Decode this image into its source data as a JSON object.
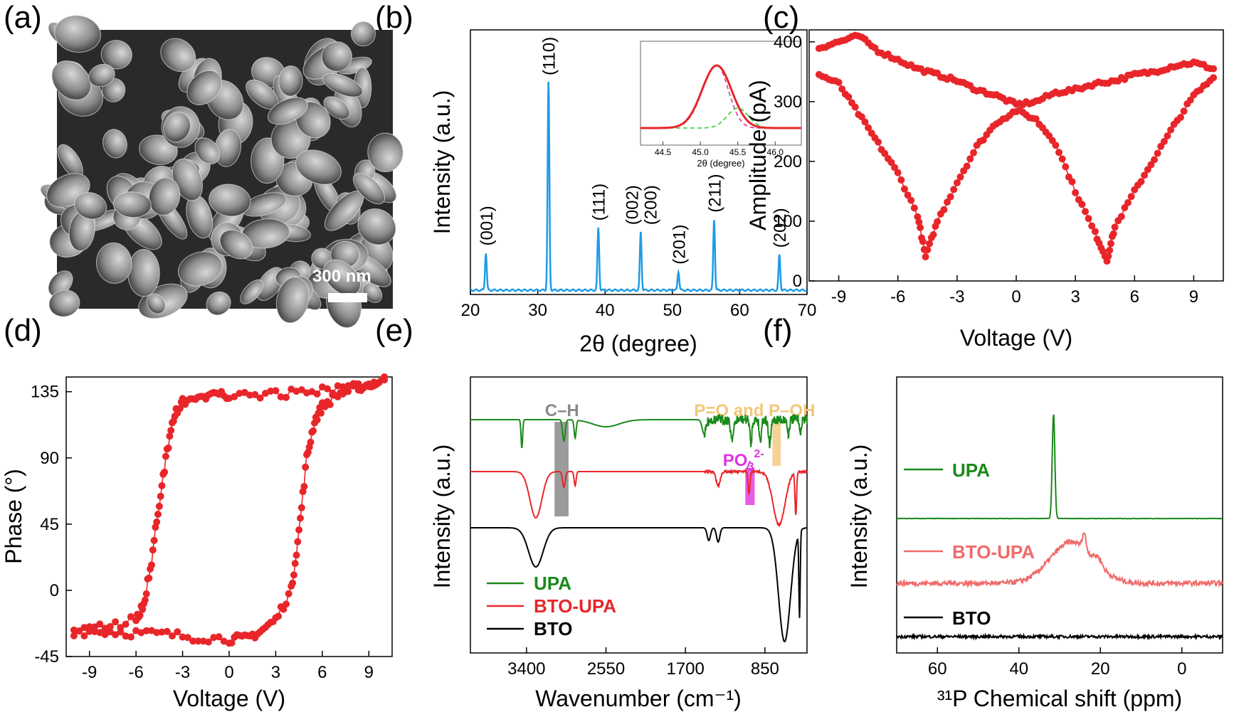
{
  "panels": {
    "a": {
      "label": "(a)",
      "scale_bar_text": "300 nm"
    },
    "b": {
      "label": "(b)",
      "inset_xlabel": "2θ (degree)",
      "inset_xticks": [
        "44.5",
        "45.0",
        "45.5",
        "46.0"
      ]
    },
    "c": {
      "label": "(c)"
    },
    "d": {
      "label": "(d)"
    },
    "e": {
      "label": "(e)",
      "annotations": {
        "ch": "C–H",
        "po": "P=O and P–OH",
        "po3": "PO",
        "po3_sub": "3",
        "po3_sup": "2-"
      }
    },
    "f": {
      "label": "(f)"
    }
  },
  "colors": {
    "xrd": "#1e9be6",
    "red": "#e8262a",
    "upa": "#1a8a1a",
    "bto_upa_nmr": "#f06a6a",
    "bto": "#000000",
    "ch_box": "#8a8a8a",
    "po_box": "#f2c77a",
    "po3_box": "#e033e0",
    "inset_fit": "#e8262a",
    "inset_magenta": "#e0339a",
    "inset_green": "#33cc33"
  },
  "chart_data": [
    {
      "id": "b",
      "type": "line",
      "xlabel": "2θ (degree)",
      "ylabel": "Intensity (a.u.)",
      "xlim": [
        20,
        70
      ],
      "xticks": [
        20,
        30,
        40,
        50,
        60,
        70
      ],
      "peaks": [
        {
          "x": 22.3,
          "h": 0.18,
          "label": "(001)"
        },
        {
          "x": 31.6,
          "h": 1.0,
          "label": "(110)"
        },
        {
          "x": 39.0,
          "h": 0.3,
          "label": "(111)"
        },
        {
          "x": 45.3,
          "h": 0.28,
          "label": "(002)\n(200)"
        },
        {
          "x": 50.9,
          "h": 0.09,
          "label": "(201)"
        },
        {
          "x": 56.2,
          "h": 0.34,
          "label": "(211)"
        },
        {
          "x": 65.9,
          "h": 0.17,
          "label": "(202)"
        }
      ]
    },
    {
      "id": "c",
      "type": "scatter",
      "xlabel": "Voltage (V)",
      "ylabel": "Amplitude (pA)",
      "xlim": [
        -10.5,
        10.5
      ],
      "ylim": [
        0,
        420
      ],
      "xticks": [
        -9,
        -6,
        -3,
        0,
        3,
        6,
        9
      ],
      "yticks": [
        0,
        100,
        200,
        300,
        400
      ],
      "branch_top": [
        [
          -10,
          390
        ],
        [
          -9,
          400
        ],
        [
          -8,
          410
        ],
        [
          -7,
          385
        ],
        [
          -6,
          370
        ],
        [
          -5,
          355
        ],
        [
          -4,
          345
        ],
        [
          -3,
          335
        ],
        [
          -2,
          320
        ],
        [
          -1,
          310
        ],
        [
          0,
          295
        ],
        [
          1,
          300
        ],
        [
          2,
          315
        ],
        [
          3,
          320
        ],
        [
          4,
          330
        ],
        [
          5,
          335
        ],
        [
          6,
          345
        ],
        [
          7,
          350
        ],
        [
          8,
          360
        ],
        [
          9,
          365
        ],
        [
          10,
          355
        ]
      ],
      "branch_bottom": [
        [
          -10,
          345
        ],
        [
          -9,
          330
        ],
        [
          -8,
          280
        ],
        [
          -7,
          230
        ],
        [
          -6,
          180
        ],
        [
          -5,
          110
        ],
        [
          -4.6,
          40
        ],
        [
          -4,
          100
        ],
        [
          -3,
          165
        ],
        [
          -2,
          225
        ],
        [
          -1,
          265
        ],
        [
          0,
          285
        ],
        [
          1,
          270
        ],
        [
          2,
          230
        ],
        [
          3,
          150
        ],
        [
          4,
          80
        ],
        [
          4.6,
          35
        ],
        [
          5,
          90
        ],
        [
          6,
          150
        ],
        [
          7,
          205
        ],
        [
          8,
          260
        ],
        [
          9,
          310
        ],
        [
          10,
          340
        ]
      ]
    },
    {
      "id": "d",
      "type": "scatter",
      "xlabel": "Voltage (V)",
      "ylabel": "Phase (°)",
      "xlim": [
        -10.5,
        10.5
      ],
      "ylim": [
        -45,
        145
      ],
      "xticks": [
        -9,
        -6,
        -3,
        0,
        3,
        6,
        9
      ],
      "yticks": [
        -45,
        0,
        45,
        90,
        135
      ],
      "branch_forward": [
        [
          -10,
          -28
        ],
        [
          -8,
          -28
        ],
        [
          -6,
          -29
        ],
        [
          -4,
          -30
        ],
        [
          -2,
          -32
        ],
        [
          0,
          -33
        ],
        [
          1,
          -33
        ],
        [
          2,
          -28
        ],
        [
          3,
          -20
        ],
        [
          4,
          0
        ],
        [
          4.5,
          40
        ],
        [
          5,
          90
        ],
        [
          5.5,
          115
        ],
        [
          6,
          125
        ],
        [
          7,
          133
        ],
        [
          8,
          137
        ],
        [
          9,
          140
        ],
        [
          10,
          143
        ]
      ],
      "branch_backward": [
        [
          10,
          143
        ],
        [
          8,
          138
        ],
        [
          6,
          136
        ],
        [
          4,
          134
        ],
        [
          2,
          133
        ],
        [
          0,
          133
        ],
        [
          -1,
          132
        ],
        [
          -2,
          130
        ],
        [
          -3,
          128
        ],
        [
          -3.5,
          120
        ],
        [
          -4,
          95
        ],
        [
          -4.5,
          60
        ],
        [
          -5,
          20
        ],
        [
          -5.5,
          -10
        ],
        [
          -6,
          -20
        ],
        [
          -8,
          -25
        ],
        [
          -10,
          -27
        ]
      ]
    },
    {
      "id": "e",
      "type": "line",
      "xlabel": "Wavenumber (cm⁻¹)",
      "ylabel": "Intensity (a.u.)",
      "xlim": [
        4000,
        400
      ],
      "xticks": [
        3400,
        2550,
        1700,
        850
      ],
      "series": [
        {
          "name": "UPA",
          "color": "#1a8a1a"
        },
        {
          "name": "BTO-UPA",
          "color": "#e8262a"
        },
        {
          "name": "BTO",
          "color": "#000000"
        }
      ]
    },
    {
      "id": "f",
      "type": "line",
      "xlabel": "³¹P Chemical shift (ppm)",
      "ylabel": "Intensity (a.u.)",
      "xlim": [
        70,
        -10
      ],
      "xticks": [
        60,
        40,
        20,
        0
      ],
      "series": [
        {
          "name": "UPA",
          "color": "#1a8a1a",
          "peak": 31.5
        },
        {
          "name": "BTO-UPA",
          "color": "#f06a6a",
          "peak": 24.0
        },
        {
          "name": "BTO",
          "color": "#000000"
        }
      ]
    }
  ]
}
